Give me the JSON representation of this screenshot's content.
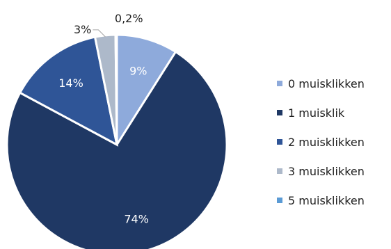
{
  "chart_data": {
    "type": "pie",
    "categories": [
      "0 muisklikken",
      "1 muisklik",
      "2 muisklikken",
      "3 muisklikken",
      "5 muisklikken"
    ],
    "values": [
      9,
      74,
      14,
      3,
      0.2
    ],
    "data_labels": [
      "9%",
      "74%",
      "14%",
      "3%",
      "0,2%"
    ],
    "colors": [
      "#8eaadb",
      "#1f3864",
      "#2f5597",
      "#adb9ca",
      "#5b9bd5"
    ],
    "label_colors": [
      "#ffffff",
      "#ffffff",
      "#ffffff",
      "#1f1f1f",
      "#1f1f1f"
    ],
    "start_angle_deg": 0,
    "direction": "clockwise",
    "legend_position": "right",
    "title": ""
  }
}
